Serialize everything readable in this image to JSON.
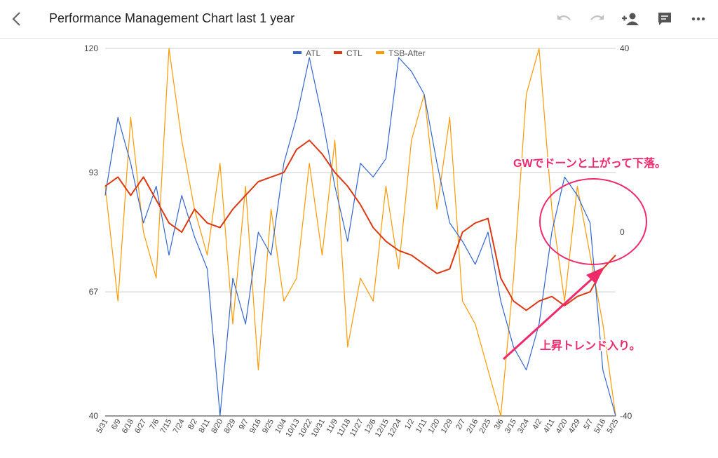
{
  "header": {
    "title": "Performance Management Chart last 1 year"
  },
  "icons": {
    "back": "chevron-left-icon",
    "undo": "undo-icon",
    "redo": "redo-icon",
    "share": "person-add-icon",
    "comment": "comment-icon",
    "more": "more-horizontal-icon"
  },
  "annotations": {
    "gw": "GWでドーンと上がって下落。",
    "trend": "上昇トレンド入り。",
    "color": "#ee2a6b"
  },
  "colors": {
    "ATL": "#3366cc",
    "CTL": "#dc3912",
    "TSB-After": "#ff9900"
  },
  "chart_data": {
    "type": "line",
    "legend_position": "top",
    "grid": true,
    "y_left": {
      "min": 40,
      "max": 120,
      "ticks": [
        "120",
        "93",
        "67",
        "40"
      ]
    },
    "y_right": {
      "min": -40,
      "max": 40,
      "ticks": [
        "40",
        "0",
        "-40"
      ]
    },
    "x_tick_labels": [
      "5/31",
      "6/9",
      "6/18",
      "6/27",
      "7/6",
      "7/15",
      "7/24",
      "8/2",
      "8/11",
      "8/20",
      "8/29",
      "9/7",
      "9/16",
      "9/25",
      "10/4",
      "10/13",
      "10/22",
      "10/31",
      "11/9",
      "11/18",
      "11/27",
      "12/6",
      "12/15",
      "12/24",
      "1/2",
      "1/11",
      "1/20",
      "1/29",
      "2/7",
      "2/16",
      "2/25",
      "3/6",
      "3/15",
      "3/24",
      "4/2",
      "4/11",
      "4/20",
      "4/29",
      "5/7",
      "5/16",
      "5/25"
    ],
    "series": [
      {
        "name": "ATL",
        "axis": "left",
        "points": [
          [
            0,
            88
          ],
          [
            1,
            105
          ],
          [
            2,
            95
          ],
          [
            3,
            82
          ],
          [
            4,
            90
          ],
          [
            5,
            75
          ],
          [
            6,
            88
          ],
          [
            7,
            79
          ],
          [
            8,
            72
          ],
          [
            9,
            40
          ],
          [
            10,
            70
          ],
          [
            11,
            60
          ],
          [
            12,
            80
          ],
          [
            13,
            75
          ],
          [
            14,
            95
          ],
          [
            15,
            105
          ],
          [
            16,
            118
          ],
          [
            17,
            105
          ],
          [
            18,
            90
          ],
          [
            19,
            78
          ],
          [
            20,
            95
          ],
          [
            21,
            92
          ],
          [
            22,
            96
          ],
          [
            23,
            118
          ],
          [
            24,
            115
          ],
          [
            25,
            110
          ],
          [
            26,
            95
          ],
          [
            27,
            82
          ],
          [
            28,
            78
          ],
          [
            29,
            73
          ],
          [
            30,
            80
          ],
          [
            31,
            65
          ],
          [
            32,
            55
          ],
          [
            33,
            50
          ],
          [
            34,
            60
          ],
          [
            35,
            80
          ],
          [
            36,
            92
          ],
          [
            37,
            88
          ],
          [
            38,
            82
          ],
          [
            39,
            50
          ],
          [
            40,
            40
          ]
        ]
      },
      {
        "name": "CTL",
        "axis": "left",
        "points": [
          [
            0,
            90
          ],
          [
            1,
            92
          ],
          [
            2,
            88
          ],
          [
            3,
            92
          ],
          [
            4,
            87
          ],
          [
            5,
            82
          ],
          [
            6,
            80
          ],
          [
            7,
            85
          ],
          [
            8,
            82
          ],
          [
            9,
            81
          ],
          [
            10,
            85
          ],
          [
            11,
            88
          ],
          [
            12,
            91
          ],
          [
            13,
            92
          ],
          [
            14,
            93
          ],
          [
            15,
            98
          ],
          [
            16,
            100
          ],
          [
            17,
            97
          ],
          [
            18,
            93
          ],
          [
            19,
            90
          ],
          [
            20,
            86
          ],
          [
            21,
            81
          ],
          [
            22,
            78
          ],
          [
            23,
            76
          ],
          [
            24,
            75
          ],
          [
            25,
            73
          ],
          [
            26,
            71
          ],
          [
            27,
            72
          ],
          [
            28,
            80
          ],
          [
            29,
            82
          ],
          [
            30,
            83
          ],
          [
            31,
            70
          ],
          [
            32,
            65
          ],
          [
            33,
            63
          ],
          [
            34,
            65
          ],
          [
            35,
            66
          ],
          [
            36,
            64
          ],
          [
            37,
            66
          ],
          [
            38,
            67
          ],
          [
            39,
            72
          ],
          [
            40,
            75
          ]
        ]
      },
      {
        "name": "TSB-After",
        "axis": "right",
        "points": [
          [
            0,
            10
          ],
          [
            1,
            -15
          ],
          [
            2,
            25
          ],
          [
            3,
            0
          ],
          [
            4,
            -10
          ],
          [
            5,
            40
          ],
          [
            6,
            20
          ],
          [
            7,
            5
          ],
          [
            8,
            -5
          ],
          [
            9,
            15
          ],
          [
            10,
            -20
          ],
          [
            11,
            10
          ],
          [
            12,
            -30
          ],
          [
            13,
            5
          ],
          [
            14,
            -15
          ],
          [
            15,
            -10
          ],
          [
            16,
            15
          ],
          [
            17,
            -5
          ],
          [
            18,
            20
          ],
          [
            19,
            -25
          ],
          [
            20,
            -10
          ],
          [
            21,
            -15
          ],
          [
            22,
            10
          ],
          [
            23,
            -8
          ],
          [
            24,
            20
          ],
          [
            25,
            30
          ],
          [
            26,
            5
          ],
          [
            27,
            25
          ],
          [
            28,
            -15
          ],
          [
            29,
            -20
          ],
          [
            30,
            -30
          ],
          [
            31,
            -40
          ],
          [
            32,
            -10
          ],
          [
            33,
            30
          ],
          [
            34,
            40
          ],
          [
            35,
            5
          ],
          [
            36,
            -15
          ],
          [
            37,
            10
          ],
          [
            38,
            -5
          ],
          [
            39,
            -20
          ],
          [
            40,
            -40
          ]
        ]
      }
    ]
  }
}
